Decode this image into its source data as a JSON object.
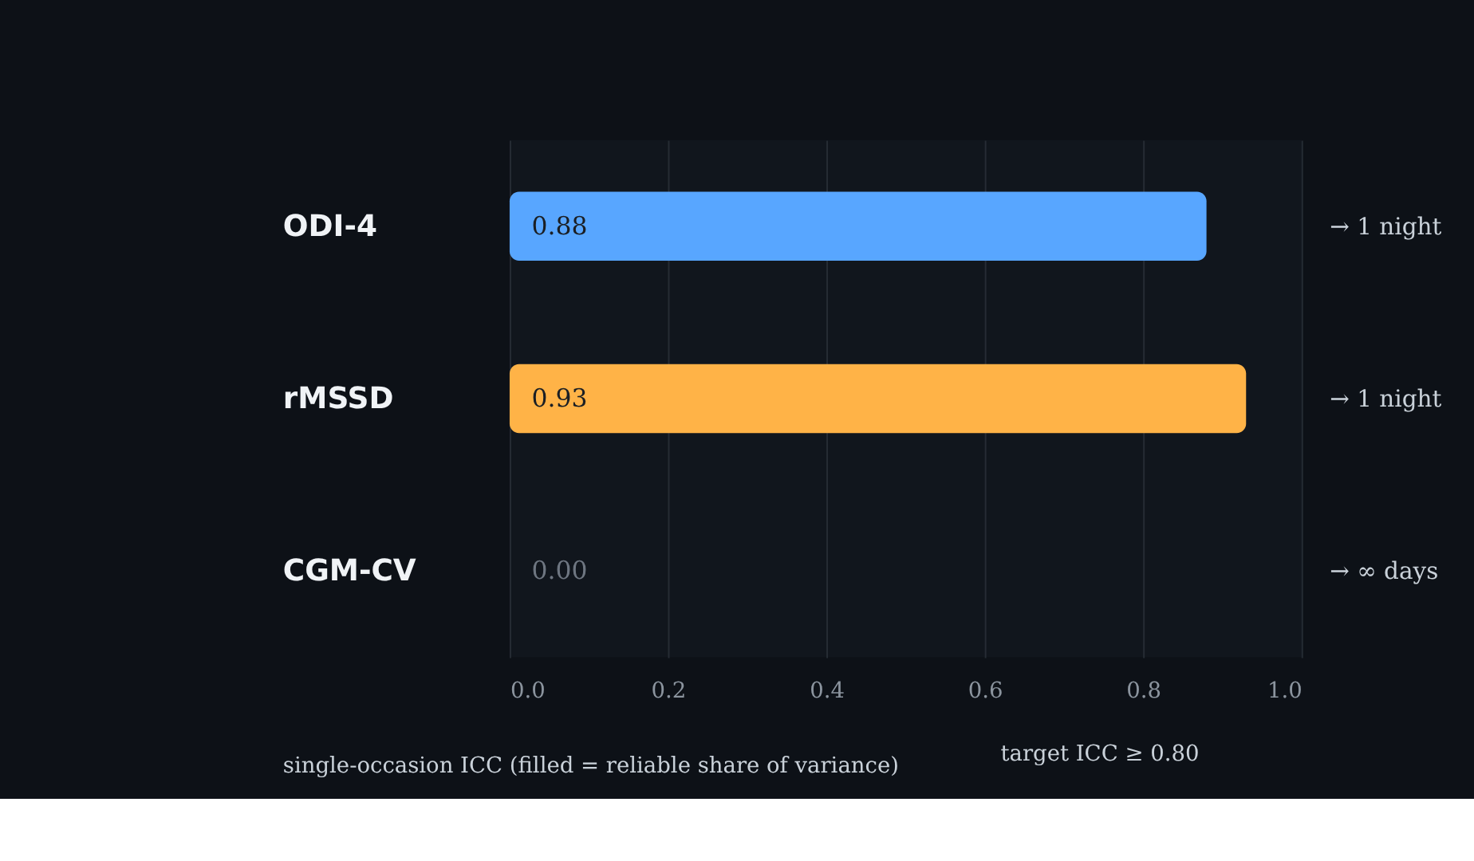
{
  "chart_data": {
    "type": "bar",
    "orientation": "horizontal",
    "categories": [
      "ODI-4",
      "rMSSD",
      "CGM-CV"
    ],
    "values": [
      0.88,
      0.93,
      0.0
    ],
    "value_labels": [
      "0.88",
      "0.93",
      "0.00"
    ],
    "colors": [
      "#58a6ff",
      "#ffb347",
      "#30363d"
    ],
    "xlim": [
      0,
      1
    ],
    "xticks": [
      {
        "value": 0,
        "label": "0.0"
      },
      0.2,
      0.4,
      0.6,
      0.8,
      {
        "value": 1,
        "label": "1.0"
      }
    ],
    "xlabel": "single-occasion ICC (filled = reliable share of variance)",
    "grid": "x",
    "annotations": [
      "→ 1 night",
      "→ 1 night",
      "→ ∞ days",
      "target ICC ≥ 0.80"
    ]
  }
}
